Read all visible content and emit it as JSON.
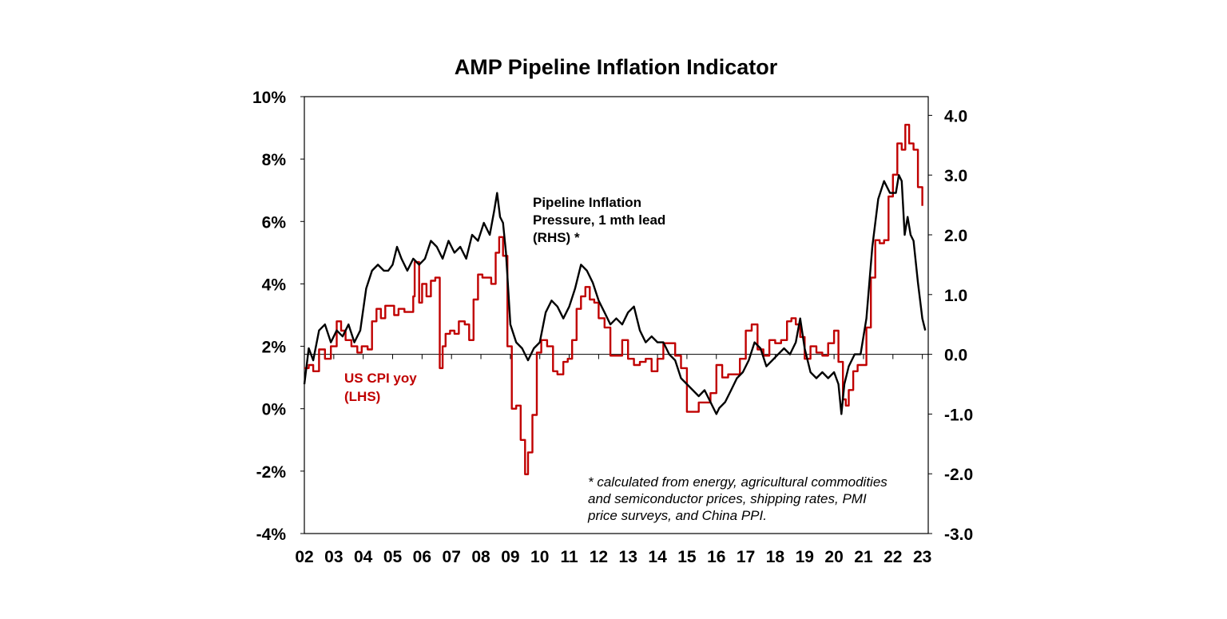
{
  "chart_data": {
    "type": "line",
    "title": "AMP Pipeline Inflation Indicator",
    "xlabel": "",
    "ylabel_left": "",
    "ylabel_right": "",
    "x_tick_labels": [
      "02",
      "03",
      "04",
      "05",
      "06",
      "07",
      "08",
      "09",
      "10",
      "11",
      "12",
      "13",
      "14",
      "15",
      "16",
      "17",
      "18",
      "19",
      "20",
      "21",
      "22",
      "23"
    ],
    "xlim": [
      2002,
      2023.2
    ],
    "ylim_left": [
      -4,
      10
    ],
    "ylim_right": [
      -3,
      4.5
    ],
    "left_ticks": [
      {
        "v": 10,
        "label": "10%"
      },
      {
        "v": 8,
        "label": "8%"
      },
      {
        "v": 6,
        "label": "6%"
      },
      {
        "v": 4,
        "label": "4%"
      },
      {
        "v": 2,
        "label": "2%"
      },
      {
        "v": 0,
        "label": "0%"
      },
      {
        "v": -2,
        "label": "-2%"
      },
      {
        "v": -4,
        "label": "-4%"
      }
    ],
    "right_ticks": [
      {
        "v": 4,
        "label": "4.0"
      },
      {
        "v": 3,
        "label": "3.0"
      },
      {
        "v": 2,
        "label": "2.0"
      },
      {
        "v": 1,
        "label": "1.0"
      },
      {
        "v": 0,
        "label": "0.0"
      },
      {
        "v": -1,
        "label": "-1.0"
      },
      {
        "v": -2,
        "label": "-2.0"
      },
      {
        "v": -3,
        "label": "-3.0"
      }
    ],
    "zero_line_right": 0,
    "series": [
      {
        "name": "US CPI yoy (LHS)",
        "axis": "left",
        "color": "#c00000",
        "x": [
          2002.0,
          2002.15,
          2002.3,
          2002.5,
          2002.7,
          2002.9,
          2003.1,
          2003.25,
          2003.4,
          2003.6,
          2003.8,
          2003.95,
          2004.15,
          2004.3,
          2004.45,
          2004.6,
          2004.75,
          2004.9,
          2005.05,
          2005.2,
          2005.4,
          2005.55,
          2005.7,
          2005.75,
          2005.9,
          2006.0,
          2006.15,
          2006.3,
          2006.45,
          2006.6,
          2006.7,
          2006.8,
          2006.95,
          2007.1,
          2007.25,
          2007.45,
          2007.6,
          2007.75,
          2007.9,
          2008.05,
          2008.2,
          2008.35,
          2008.5,
          2008.62,
          2008.75,
          2008.9,
          2009.05,
          2009.2,
          2009.35,
          2009.5,
          2009.6,
          2009.75,
          2009.9,
          2010.05,
          2010.25,
          2010.45,
          2010.6,
          2010.8,
          2010.95,
          2011.1,
          2011.25,
          2011.4,
          2011.55,
          2011.7,
          2011.85,
          2012.0,
          2012.2,
          2012.4,
          2012.6,
          2012.8,
          2013.0,
          2013.2,
          2013.4,
          2013.6,
          2013.8,
          2014.0,
          2014.2,
          2014.4,
          2014.6,
          2014.8,
          2015.0,
          2015.2,
          2015.4,
          2015.6,
          2015.8,
          2016.0,
          2016.2,
          2016.4,
          2016.6,
          2016.8,
          2017.0,
          2017.2,
          2017.4,
          2017.6,
          2017.8,
          2018.0,
          2018.2,
          2018.4,
          2018.55,
          2018.7,
          2018.85,
          2019.0,
          2019.2,
          2019.4,
          2019.6,
          2019.8,
          2020.0,
          2020.15,
          2020.3,
          2020.4,
          2020.5,
          2020.65,
          2020.8,
          2020.95,
          2021.1,
          2021.25,
          2021.4,
          2021.55,
          2021.7,
          2021.85,
          2022.0,
          2022.15,
          2022.3,
          2022.42,
          2022.55,
          2022.7,
          2022.85,
          2023.0
        ],
        "y": [
          1.3,
          1.4,
          1.2,
          1.9,
          1.6,
          2.0,
          2.8,
          2.5,
          2.2,
          2.0,
          1.8,
          2.0,
          1.9,
          2.8,
          3.2,
          2.9,
          3.3,
          3.3,
          3.0,
          3.2,
          3.1,
          3.1,
          3.6,
          4.7,
          3.4,
          4.0,
          3.6,
          4.1,
          4.2,
          1.3,
          2.0,
          2.4,
          2.5,
          2.4,
          2.8,
          2.7,
          2.2,
          3.5,
          4.3,
          4.2,
          4.2,
          4.0,
          5.0,
          5.5,
          4.9,
          2.0,
          0.0,
          0.1,
          -1.0,
          -2.1,
          -1.4,
          -0.2,
          1.8,
          2.2,
          2.0,
          1.2,
          1.1,
          1.5,
          1.6,
          2.2,
          3.2,
          3.6,
          3.9,
          3.5,
          3.4,
          2.9,
          2.6,
          1.7,
          1.7,
          2.2,
          1.6,
          1.4,
          1.5,
          1.6,
          1.2,
          1.6,
          2.1,
          2.1,
          1.7,
          1.3,
          -0.1,
          -0.1,
          0.2,
          0.2,
          0.5,
          1.4,
          1.0,
          1.1,
          1.1,
          1.6,
          2.5,
          2.7,
          1.9,
          1.7,
          2.2,
          2.1,
          2.2,
          2.8,
          2.9,
          2.7,
          2.3,
          1.6,
          2.0,
          1.8,
          1.7,
          2.1,
          2.5,
          1.5,
          0.3,
          0.1,
          0.6,
          1.2,
          1.4,
          1.4,
          2.6,
          4.2,
          5.4,
          5.3,
          5.4,
          6.8,
          7.5,
          8.5,
          8.3,
          9.1,
          8.5,
          8.3,
          7.1,
          6.5
        ]
      },
      {
        "name": "Pipeline Inflation Pressure, 1 mth lead (RHS) *",
        "axis": "right",
        "color": "#000000",
        "x": [
          2002.0,
          2002.15,
          2002.3,
          2002.5,
          2002.7,
          2002.9,
          2003.1,
          2003.3,
          2003.5,
          2003.7,
          2003.9,
          2004.1,
          2004.3,
          2004.5,
          2004.7,
          2004.85,
          2005.0,
          2005.15,
          2005.3,
          2005.5,
          2005.7,
          2005.9,
          2006.1,
          2006.3,
          2006.5,
          2006.7,
          2006.9,
          2007.1,
          2007.3,
          2007.5,
          2007.7,
          2007.9,
          2008.1,
          2008.3,
          2008.45,
          2008.55,
          2008.65,
          2008.75,
          2008.85,
          2009.0,
          2009.2,
          2009.4,
          2009.6,
          2009.8,
          2010.0,
          2010.2,
          2010.4,
          2010.6,
          2010.8,
          2011.0,
          2011.2,
          2011.4,
          2011.6,
          2011.8,
          2012.0,
          2012.2,
          2012.4,
          2012.6,
          2012.8,
          2013.0,
          2013.2,
          2013.4,
          2013.6,
          2013.8,
          2014.0,
          2014.2,
          2014.4,
          2014.6,
          2014.8,
          2015.0,
          2015.2,
          2015.4,
          2015.6,
          2015.8,
          2016.0,
          2016.1,
          2016.3,
          2016.5,
          2016.7,
          2016.9,
          2017.1,
          2017.3,
          2017.5,
          2017.7,
          2017.9,
          2018.1,
          2018.3,
          2018.5,
          2018.7,
          2018.85,
          2019.0,
          2019.2,
          2019.4,
          2019.6,
          2019.8,
          2020.0,
          2020.15,
          2020.25,
          2020.35,
          2020.5,
          2020.7,
          2020.9,
          2021.1,
          2021.3,
          2021.5,
          2021.7,
          2021.9,
          2022.1,
          2022.2,
          2022.3,
          2022.4,
          2022.5,
          2022.6,
          2022.7,
          2022.85,
          2023.0,
          2023.1
        ],
        "y": [
          -0.5,
          0.1,
          -0.1,
          0.4,
          0.5,
          0.2,
          0.4,
          0.3,
          0.5,
          0.2,
          0.4,
          1.1,
          1.4,
          1.5,
          1.4,
          1.4,
          1.5,
          1.8,
          1.6,
          1.4,
          1.6,
          1.5,
          1.6,
          1.9,
          1.8,
          1.6,
          1.9,
          1.7,
          1.8,
          1.6,
          2.0,
          1.9,
          2.2,
          2.0,
          2.4,
          2.7,
          2.3,
          2.2,
          1.7,
          0.5,
          0.2,
          0.1,
          -0.1,
          0.1,
          0.2,
          0.7,
          0.9,
          0.8,
          0.6,
          0.8,
          1.1,
          1.5,
          1.4,
          1.2,
          0.9,
          0.7,
          0.5,
          0.6,
          0.5,
          0.7,
          0.8,
          0.4,
          0.2,
          0.3,
          0.2,
          0.2,
          0.0,
          -0.1,
          -0.4,
          -0.5,
          -0.6,
          -0.7,
          -0.6,
          -0.8,
          -1.0,
          -0.9,
          -0.8,
          -0.6,
          -0.4,
          -0.3,
          -0.1,
          0.2,
          0.1,
          -0.2,
          -0.1,
          0.0,
          0.1,
          0.0,
          0.2,
          0.6,
          0.1,
          -0.3,
          -0.4,
          -0.3,
          -0.4,
          -0.3,
          -0.5,
          -1.0,
          -0.5,
          -0.2,
          0.0,
          0.0,
          0.6,
          1.8,
          2.6,
          2.9,
          2.7,
          2.7,
          3.0,
          2.9,
          2.0,
          2.3,
          2.0,
          1.9,
          1.2,
          0.6,
          0.4
        ]
      }
    ],
    "annotations": {
      "cpi_label_line1": "US CPI yoy",
      "cpi_label_line2": "(LHS)",
      "pipeline_label_line1": "Pipeline Inflation",
      "pipeline_label_line2": "Pressure, 1 mth lead",
      "pipeline_label_line3": "(RHS) *",
      "footnote_line1": "* calculated from energy, agricultural commodities",
      "footnote_line2": "and semiconductor prices, shipping rates, PMI",
      "footnote_line3": "price surveys, and China PPI."
    }
  }
}
